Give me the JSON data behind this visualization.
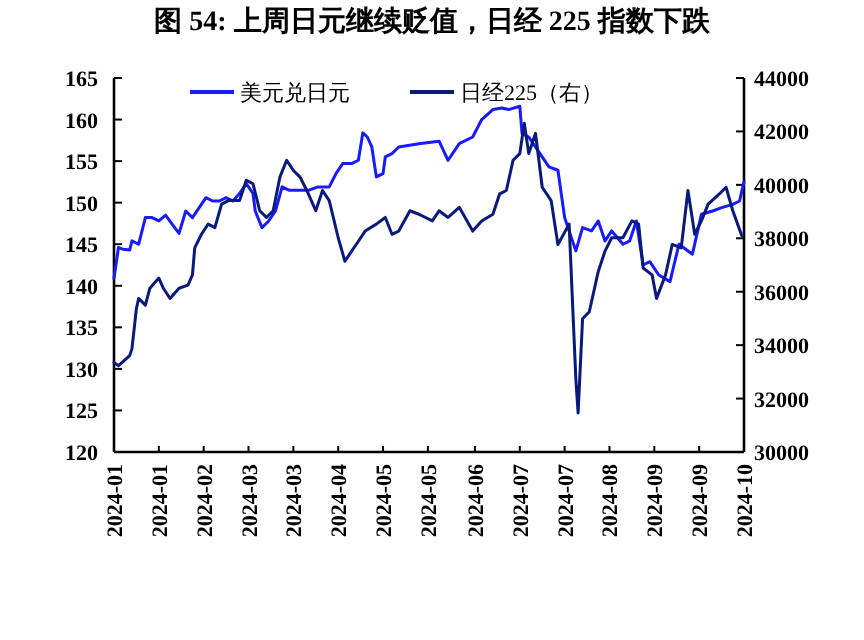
{
  "chart_data": {
    "type": "line",
    "title": "图 54: 上周日元继续贬值，日经 225 指数下跌",
    "xlim": [
      "2024-01-04",
      "2024-10-11"
    ],
    "xticks": [
      {
        "value": "2024-01-04",
        "label": "2024-01"
      },
      {
        "value": "2024-01-24",
        "label": "2024-01"
      },
      {
        "value": "2024-02-13",
        "label": "2024-02"
      },
      {
        "value": "2024-03-04",
        "label": "2024-03"
      },
      {
        "value": "2024-03-24",
        "label": "2024-03"
      },
      {
        "value": "2024-04-13",
        "label": "2024-04"
      },
      {
        "value": "2024-05-03",
        "label": "2024-05"
      },
      {
        "value": "2024-05-23",
        "label": "2024-05"
      },
      {
        "value": "2024-06-13",
        "label": "2024-06"
      },
      {
        "value": "2024-07-03",
        "label": "2024-07"
      },
      {
        "value": "2024-07-23",
        "label": "2024-07"
      },
      {
        "value": "2024-08-12",
        "label": "2024-08"
      },
      {
        "value": "2024-09-01",
        "label": "2024-09"
      },
      {
        "value": "2024-09-21",
        "label": "2024-09"
      },
      {
        "value": "2024-10-11",
        "label": "2024-10"
      }
    ],
    "ylim": [
      120,
      165
    ],
    "yticks": [
      120,
      125,
      130,
      135,
      140,
      145,
      150,
      155,
      160,
      165
    ],
    "y2lim": [
      30000,
      44000
    ],
    "y2ticks": [
      30000,
      32000,
      34000,
      36000,
      38000,
      40000,
      42000,
      44000
    ],
    "legend": "top",
    "grid": false,
    "series": [
      {
        "name": "美元兑日元",
        "color": "#1a1aff",
        "x": [
          "2024-01-04",
          "2024-01-06",
          "2024-01-08",
          "2024-01-11",
          "2024-01-12",
          "2024-01-15",
          "2024-01-18",
          "2024-01-21",
          "2024-01-24",
          "2024-01-27",
          "2024-01-30",
          "2024-02-02",
          "2024-02-05",
          "2024-02-08",
          "2024-02-11",
          "2024-02-14",
          "2024-02-17",
          "2024-02-20",
          "2024-02-23",
          "2024-02-26",
          "2024-02-29",
          "2024-03-03",
          "2024-03-06",
          "2024-03-07",
          "2024-03-10",
          "2024-03-13",
          "2024-03-16",
          "2024-03-19",
          "2024-03-22",
          "2024-03-27",
          "2024-03-31",
          "2024-04-04",
          "2024-04-09",
          "2024-04-12",
          "2024-04-15",
          "2024-04-19",
          "2024-04-22",
          "2024-04-24",
          "2024-04-26",
          "2024-04-28",
          "2024-04-30",
          "2024-05-03",
          "2024-05-04",
          "2024-05-07",
          "2024-05-10",
          "2024-05-19",
          "2024-05-28",
          "2024-06-01",
          "2024-06-06",
          "2024-06-12",
          "2024-06-16",
          "2024-06-21",
          "2024-06-25",
          "2024-06-28",
          "2024-07-03",
          "2024-07-04",
          "2024-07-07",
          "2024-07-12",
          "2024-07-16",
          "2024-07-20",
          "2024-07-23",
          "2024-07-28",
          "2024-07-31",
          "2024-08-04",
          "2024-08-07",
          "2024-08-10",
          "2024-08-13",
          "2024-08-18",
          "2024-08-21",
          "2024-08-24",
          "2024-08-27",
          "2024-08-30",
          "2024-09-03",
          "2024-09-08",
          "2024-09-12",
          "2024-09-18",
          "2024-09-22",
          "2024-09-27",
          "2024-10-01",
          "2024-10-06",
          "2024-10-09",
          "2024-10-11"
        ],
        "values": [
          140.9,
          144.6,
          144.4,
          144.3,
          145.4,
          145.0,
          148.2,
          148.2,
          147.8,
          148.5,
          147.4,
          146.3,
          149.0,
          148.2,
          149.4,
          150.6,
          150.2,
          150.2,
          150.6,
          150.2,
          151.1,
          152.3,
          151.1,
          149.0,
          147.0,
          147.8,
          149.0,
          151.9,
          151.5,
          151.5,
          151.5,
          151.9,
          151.9,
          153.5,
          154.7,
          154.7,
          155.1,
          158.4,
          157.9,
          156.7,
          153.1,
          153.5,
          155.5,
          155.9,
          156.7,
          157.1,
          157.4,
          155.1,
          157.1,
          157.9,
          160.0,
          161.2,
          161.4,
          161.2,
          161.6,
          158.3,
          157.9,
          155.9,
          154.3,
          153.9,
          148.2,
          144.2,
          147.0,
          146.6,
          147.8,
          145.4,
          146.6,
          145.0,
          145.4,
          147.8,
          142.5,
          142.9,
          141.3,
          140.5,
          145.0,
          143.8,
          148.6,
          149.0,
          149.4,
          149.8,
          150.2,
          152.5
        ]
      },
      {
        "name": "日经225（右）",
        "color": "#0a1a7a",
        "axis": "y2",
        "x": [
          "2024-01-04",
          "2024-01-06",
          "2024-01-11",
          "2024-01-12",
          "2024-01-14",
          "2024-01-15",
          "2024-01-18",
          "2024-01-20",
          "2024-01-24",
          "2024-01-26",
          "2024-01-29",
          "2024-02-02",
          "2024-02-06",
          "2024-02-08",
          "2024-02-09",
          "2024-02-12",
          "2024-02-15",
          "2024-02-18",
          "2024-02-21",
          "2024-02-24",
          "2024-02-29",
          "2024-03-03",
          "2024-03-06",
          "2024-03-09",
          "2024-03-12",
          "2024-03-15",
          "2024-03-18",
          "2024-03-21",
          "2024-03-24",
          "2024-03-27",
          "2024-03-30",
          "2024-04-03",
          "2024-04-06",
          "2024-04-09",
          "2024-04-13",
          "2024-04-16",
          "2024-04-19",
          "2024-04-22",
          "2024-04-25",
          "2024-04-30",
          "2024-05-04",
          "2024-05-07",
          "2024-05-10",
          "2024-05-15",
          "2024-05-19",
          "2024-05-25",
          "2024-05-28",
          "2024-06-01",
          "2024-06-06",
          "2024-06-12",
          "2024-06-16",
          "2024-06-21",
          "2024-06-24",
          "2024-06-27",
          "2024-06-30",
          "2024-07-03",
          "2024-07-05",
          "2024-07-07",
          "2024-07-10",
          "2024-07-13",
          "2024-07-17",
          "2024-07-20",
          "2024-07-25",
          "2024-07-28",
          "2024-07-29",
          "2024-07-31",
          "2024-08-03",
          "2024-08-07",
          "2024-08-10",
          "2024-08-13",
          "2024-08-18",
          "2024-08-22",
          "2024-08-25",
          "2024-08-27",
          "2024-08-31",
          "2024-09-02",
          "2024-09-06",
          "2024-09-09",
          "2024-09-13",
          "2024-09-16",
          "2024-09-19",
          "2024-09-22",
          "2024-09-25",
          "2024-09-30",
          "2024-10-03",
          "2024-10-06",
          "2024-10-10"
        ],
        "values": [
          33350,
          33230,
          33610,
          33860,
          35370,
          35750,
          35500,
          36130,
          36510,
          36130,
          35750,
          36130,
          36250,
          36630,
          37640,
          38150,
          38530,
          38400,
          39280,
          39410,
          39410,
          40170,
          40040,
          39030,
          38780,
          39030,
          40290,
          40920,
          40540,
          40290,
          39790,
          39030,
          39790,
          39410,
          38020,
          37140,
          37520,
          37890,
          38270,
          38530,
          38780,
          38150,
          38270,
          39030,
          38900,
          38650,
          39030,
          38780,
          39160,
          38270,
          38650,
          38900,
          39660,
          39790,
          40920,
          41170,
          42310,
          41170,
          41930,
          39910,
          39410,
          37770,
          38530,
          32720,
          31460,
          34990,
          35250,
          36760,
          37520,
          38020,
          38020,
          38650,
          38530,
          36890,
          36630,
          35750,
          36630,
          37770,
          37640,
          39790,
          38150,
          38650,
          39280,
          39660,
          39910,
          39030,
          38100
        ]
      }
    ]
  }
}
